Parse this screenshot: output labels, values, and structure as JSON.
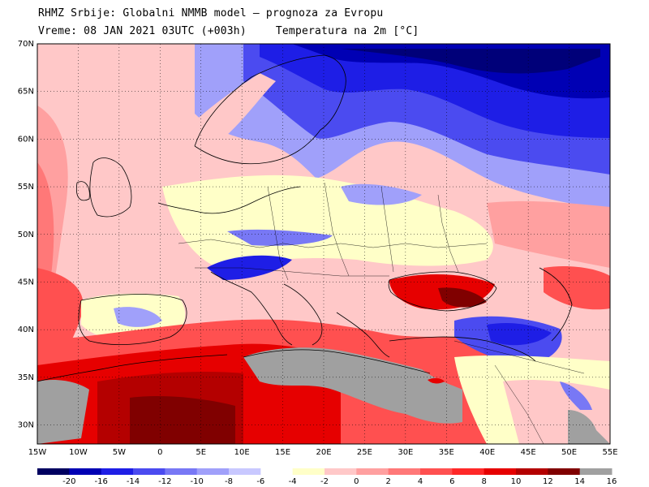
{
  "header": {
    "line1": "RHMZ Srbije: Globalni NMMB model — prognoza za Evropu",
    "time": "Vreme: 08 JAN 2021 03UTC (+003h)",
    "variable": "Temperatura na 2m [°C]"
  },
  "map": {
    "lon_range": [
      -15,
      55
    ],
    "lat_range": [
      28,
      70
    ],
    "lat_labels": [
      "70N",
      "65N",
      "60N",
      "55N",
      "50N",
      "45N",
      "40N",
      "35N",
      "30N"
    ],
    "lon_labels": [
      "15W",
      "10W",
      "5W",
      "0",
      "5E",
      "10E",
      "15E",
      "20E",
      "25E",
      "30E",
      "35E",
      "40E",
      "45E",
      "50E",
      "55E"
    ]
  },
  "legend": {
    "colors": [
      "#000060",
      "#0000b4",
      "#1e1ee6",
      "#4b4bf0",
      "#7878f5",
      "#a0a0fa",
      "#c8c8ff",
      "#ffffff",
      "#ffffc8",
      "#ffc8c8",
      "#ffa0a0",
      "#ff7878",
      "#ff5050",
      "#ff2828",
      "#e60000",
      "#b40000",
      "#800000",
      "#a0a0a0"
    ],
    "labels": [
      "-20",
      "-16",
      "-14",
      "-12",
      "-10",
      "-8",
      "-6",
      "-4",
      "-2",
      "0",
      "2",
      "4",
      "6",
      "8",
      "10",
      "12",
      "14",
      "16"
    ]
  }
}
